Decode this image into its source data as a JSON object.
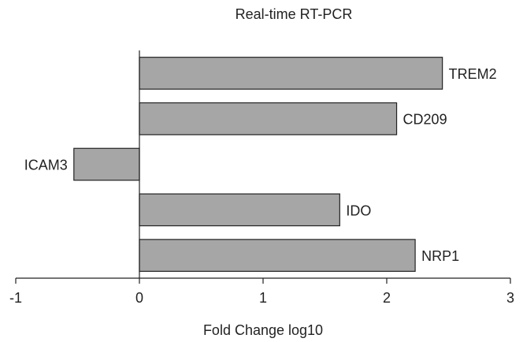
{
  "chart_data": {
    "type": "bar",
    "orientation": "horizontal",
    "title": "Real-time RT-PCR",
    "xlabel": "Fold Change log10",
    "ylabel": "",
    "xlim": [
      -1,
      3
    ],
    "xticks": [
      "-1",
      "0",
      "1",
      "2",
      "3"
    ],
    "categories": [
      "TREM2",
      "CD209",
      "ICAM3",
      "IDO",
      "NRP1"
    ],
    "values": [
      2.45,
      2.08,
      -0.53,
      1.62,
      2.23
    ],
    "bar_color": "#a6a6a6",
    "grid": false,
    "legend": "none"
  }
}
